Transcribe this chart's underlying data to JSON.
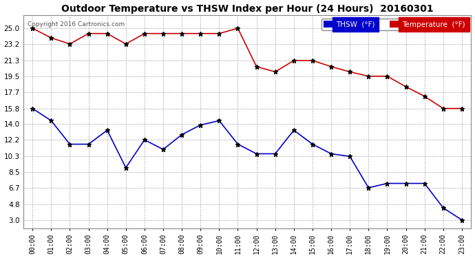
{
  "title": "Outdoor Temperature vs THSW Index per Hour (24 Hours)  20160301",
  "copyright": "Copyright 2016 Cartronics.com",
  "hours": [
    "00:00",
    "01:00",
    "02:00",
    "03:00",
    "04:00",
    "05:00",
    "06:00",
    "07:00",
    "08:00",
    "09:00",
    "10:00",
    "11:00",
    "12:00",
    "13:00",
    "14:00",
    "15:00",
    "16:00",
    "17:00",
    "18:00",
    "19:00",
    "20:00",
    "21:00",
    "22:00",
    "23:00"
  ],
  "thsw": [
    25.0,
    23.9,
    23.2,
    24.4,
    24.4,
    23.2,
    24.4,
    24.4,
    24.4,
    24.4,
    24.4,
    25.0,
    20.6,
    20.0,
    21.3,
    21.3,
    20.6,
    20.0,
    19.5,
    19.5,
    18.3,
    17.2,
    15.8,
    15.8
  ],
  "temp": [
    15.8,
    14.4,
    11.7,
    11.7,
    13.3,
    9.0,
    12.2,
    11.1,
    12.8,
    13.9,
    14.4,
    11.7,
    10.6,
    10.6,
    13.3,
    11.7,
    10.6,
    10.3,
    6.7,
    7.2,
    7.2,
    7.2,
    4.4,
    3.0
  ],
  "thsw_color": "#cc0000",
  "temp_color": "#0000cc",
  "marker": "*",
  "yticks": [
    3.0,
    4.8,
    6.7,
    8.5,
    10.3,
    12.2,
    14.0,
    15.8,
    17.7,
    19.5,
    21.3,
    23.2,
    25.0
  ],
  "ylim": [
    2.0,
    26.5
  ],
  "background_color": "#ffffff",
  "plot_bg_color": "#ffffff",
  "grid_color": "#aaaaaa",
  "legend_thsw_bg": "#0000cc",
  "legend_thsw_text": "THSW  (°F)",
  "legend_temp_bg": "#cc0000",
  "legend_temp_text": "Temperature  (°F)"
}
